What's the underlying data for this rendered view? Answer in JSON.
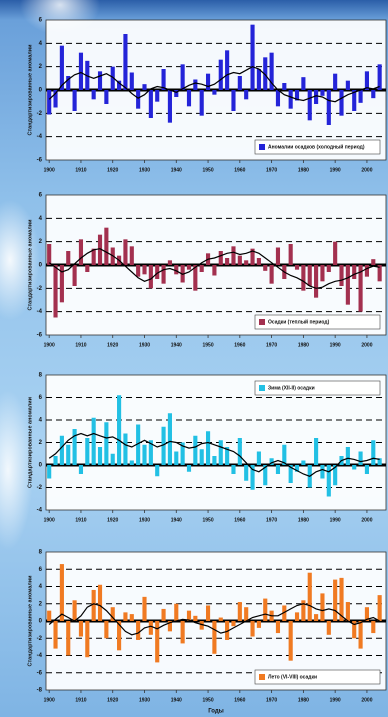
{
  "chart_data": [
    {
      "type": "bar",
      "ylabel": "Стандартизированные аномалии",
      "legend": "lower right",
      "x": [
        1900,
        1902,
        1904,
        1906,
        1908,
        1910,
        1912,
        1914,
        1916,
        1918,
        1920,
        1922,
        1924,
        1926,
        1928,
        1930,
        1932,
        1934,
        1936,
        1938,
        1940,
        1942,
        1944,
        1946,
        1948,
        1950,
        1952,
        1954,
        1956,
        1958,
        1960,
        1962,
        1964,
        1966,
        1968,
        1970,
        1972,
        1974,
        1976,
        1978,
        1980,
        1982,
        1984,
        1986,
        1988,
        1990,
        1992,
        1994,
        1996,
        1998,
        2000,
        2002,
        2004
      ],
      "xlim": [
        1899,
        2006
      ],
      "xticks": [
        1900,
        1910,
        1920,
        1930,
        1940,
        1950,
        1960,
        1970,
        1980,
        1990,
        2000
      ],
      "ylim": [
        -6,
        6
      ],
      "yticks": [
        -6,
        -4,
        -2,
        0,
        2,
        4,
        6
      ],
      "grid": true,
      "series": [
        {
          "name": "Аномалии осадков (холодный период)",
          "color": "#2424d8",
          "values": [
            -2.1,
            -1.5,
            3.8,
            1.2,
            -1.8,
            3.2,
            2.5,
            -0.8,
            1.6,
            -1.2,
            2.0,
            0.8,
            4.8,
            1.5,
            -1.6,
            0.5,
            -2.4,
            -1.0,
            1.8,
            -2.8,
            -0.6,
            2.2,
            -1.4,
            0.9,
            -2.2,
            1.4,
            -0.4,
            2.6,
            3.4,
            -1.8,
            1.2,
            -0.8,
            5.6,
            1.8,
            2.8,
            3.2,
            -1.4,
            0.6,
            -1.6,
            -0.9,
            1.1,
            -2.6,
            -1.2,
            -0.5,
            -3.0,
            1.4,
            -2.2,
            0.8,
            -1.8,
            -1.1,
            1.6,
            -0.7,
            2.2
          ]
        },
        {
          "type": "line",
          "color": "#000000",
          "values": [
            -0.8,
            -0.3,
            0.4,
            0.9,
            1.3,
            1.5,
            1.2,
            1.0,
            1.2,
            1.4,
            1.1,
            0.6,
            0.2,
            -0.3,
            -0.7,
            -0.4,
            0.1,
            0.3,
            0.2,
            0.0,
            -0.2,
            0.1,
            0.4,
            0.6,
            0.5,
            0.3,
            0.5,
            0.9,
            1.3,
            1.5,
            1.4,
            1.7,
            2.0,
            1.8,
            1.3,
            0.6,
            0.0,
            -0.4,
            -0.6,
            -0.8,
            -0.9,
            -0.7,
            -0.5,
            -0.6,
            -0.9,
            -1.0,
            -0.7,
            -0.4,
            -0.2,
            0.0,
            0.2,
            0.1,
            0.3
          ]
        }
      ]
    },
    {
      "type": "bar",
      "ylabel": "Стандартизированные аномалии",
      "legend": "lower right",
      "x": [
        1900,
        1902,
        1904,
        1906,
        1908,
        1910,
        1912,
        1914,
        1916,
        1918,
        1920,
        1922,
        1924,
        1926,
        1928,
        1930,
        1932,
        1934,
        1936,
        1938,
        1940,
        1942,
        1944,
        1946,
        1948,
        1950,
        1952,
        1954,
        1956,
        1958,
        1960,
        1962,
        1964,
        1966,
        1968,
        1970,
        1972,
        1974,
        1976,
        1978,
        1980,
        1982,
        1984,
        1986,
        1988,
        1990,
        1992,
        1994,
        1996,
        1998,
        2000,
        2002,
        2004
      ],
      "xlim": [
        1899,
        2006
      ],
      "xticks": [
        1900,
        1910,
        1920,
        1930,
        1940,
        1950,
        1960,
        1970,
        1980,
        1990,
        2000
      ],
      "ylim": [
        -6,
        6
      ],
      "yticks": [
        -6,
        -4,
        -2,
        0,
        2,
        4,
        6
      ],
      "grid": true,
      "series": [
        {
          "name": "Осадки (теплый период)",
          "color": "#a3304f",
          "values": [
            1.8,
            -4.5,
            -3.2,
            1.2,
            -1.8,
            2.2,
            -0.6,
            1.4,
            2.6,
            3.2,
            1.5,
            0.8,
            2.2,
            1.6,
            -1.0,
            -0.8,
            -2.0,
            -1.2,
            -1.6,
            0.4,
            -0.8,
            -1.5,
            -0.4,
            -2.2,
            -0.6,
            1.0,
            -0.9,
            1.2,
            0.6,
            1.6,
            0.8,
            0.4,
            1.4,
            0.6,
            -0.5,
            -1.6,
            1.5,
            -1.2,
            1.8,
            -0.4,
            -2.2,
            -1.8,
            -2.8,
            -1.4,
            -0.6,
            2.0,
            -1.8,
            -3.4,
            -1.2,
            -4.0,
            -1.0,
            0.5,
            -1.4
          ]
        },
        {
          "type": "line",
          "color": "#000000",
          "values": [
            0.2,
            -0.2,
            -0.6,
            -0.4,
            0.1,
            0.6,
            1.0,
            1.3,
            1.4,
            1.1,
            0.8,
            0.4,
            -0.1,
            -0.6,
            -1.1,
            -1.4,
            -1.2,
            -0.7,
            -0.4,
            -0.3,
            -0.5,
            -0.8,
            -0.6,
            -0.2,
            0.2,
            0.5,
            0.6,
            0.8,
            1.0,
            1.1,
            0.9,
            1.0,
            1.2,
            1.0,
            0.6,
            0.2,
            -0.2,
            -0.6,
            -0.9,
            -1.1,
            -1.4,
            -1.8,
            -2.0,
            -1.9,
            -1.6,
            -1.4,
            -1.3,
            -1.1,
            -0.8,
            -0.6,
            -0.3,
            -0.1,
            -0.2
          ]
        }
      ]
    },
    {
      "type": "bar",
      "ylabel": "Стандартизированные аномалии",
      "legend": "upper right",
      "x": [
        1900,
        1902,
        1904,
        1906,
        1908,
        1910,
        1912,
        1914,
        1916,
        1918,
        1920,
        1922,
        1924,
        1926,
        1928,
        1930,
        1932,
        1934,
        1936,
        1938,
        1940,
        1942,
        1944,
        1946,
        1948,
        1950,
        1952,
        1954,
        1956,
        1958,
        1960,
        1962,
        1964,
        1966,
        1968,
        1970,
        1972,
        1974,
        1976,
        1978,
        1980,
        1982,
        1984,
        1986,
        1988,
        1990,
        1992,
        1994,
        1996,
        1998,
        2000,
        2002,
        2004
      ],
      "xlim": [
        1899,
        2006
      ],
      "xticks": [
        1900,
        1910,
        1920,
        1930,
        1940,
        1950,
        1960,
        1970,
        1980,
        1990,
        2000
      ],
      "ylim": [
        -4,
        8
      ],
      "yticks": [
        -4,
        -2,
        0,
        2,
        4,
        6,
        8
      ],
      "grid": true,
      "series": [
        {
          "name": "Зима (XII-II) осадки",
          "color": "#22c0e4",
          "values": [
            -1.2,
            0.8,
            2.6,
            1.8,
            3.2,
            -0.8,
            2.4,
            4.2,
            1.6,
            3.8,
            1.0,
            6.2,
            2.8,
            0.4,
            3.6,
            1.8,
            2.2,
            -1.0,
            3.4,
            4.6,
            1.2,
            2.0,
            -0.6,
            2.6,
            1.4,
            3.0,
            0.8,
            2.2,
            1.6,
            -0.8,
            2.4,
            -1.4,
            -2.2,
            1.2,
            -1.8,
            0.6,
            -0.8,
            1.8,
            -1.6,
            -0.6,
            0.4,
            -2.0,
            2.4,
            -1.2,
            -2.8,
            -1.8,
            0.8,
            1.6,
            -0.4,
            1.2,
            -0.8,
            2.2,
            0.6
          ]
        },
        {
          "type": "line",
          "color": "#000000",
          "values": [
            0.6,
            1.0,
            1.6,
            2.2,
            2.6,
            2.8,
            2.6,
            2.8,
            2.6,
            2.4,
            2.5,
            2.2,
            1.8,
            1.6,
            1.9,
            2.2,
            1.9,
            1.6,
            1.8,
            2.1,
            2.0,
            1.7,
            1.5,
            1.6,
            1.9,
            2.0,
            1.8,
            1.6,
            1.4,
            1.2,
            0.8,
            0.2,
            -0.4,
            -0.6,
            -0.2,
            0.2,
            0.4,
            0.2,
            -0.2,
            -0.5,
            -0.8,
            -1.0,
            -0.6,
            -0.4,
            -0.6,
            -0.2,
            0.4,
            0.6,
            0.5,
            0.3,
            0.4,
            0.6,
            0.5
          ]
        }
      ]
    },
    {
      "type": "bar",
      "ylabel": "Стандартизированные аномалии",
      "legend": "lower right",
      "xlabel": "Годы",
      "x": [
        1900,
        1902,
        1904,
        1906,
        1908,
        1910,
        1912,
        1914,
        1916,
        1918,
        1920,
        1922,
        1924,
        1926,
        1928,
        1930,
        1932,
        1934,
        1936,
        1938,
        1940,
        1942,
        1944,
        1946,
        1948,
        1950,
        1952,
        1954,
        1956,
        1958,
        1960,
        1962,
        1964,
        1966,
        1968,
        1970,
        1972,
        1974,
        1976,
        1978,
        1980,
        1982,
        1984,
        1986,
        1988,
        1990,
        1992,
        1994,
        1996,
        1998,
        2000,
        2002,
        2004
      ],
      "xlim": [
        1899,
        2006
      ],
      "xticks": [
        1900,
        1910,
        1920,
        1930,
        1940,
        1950,
        1960,
        1970,
        1980,
        1990,
        2000
      ],
      "ylim": [
        -8,
        8
      ],
      "yticks": [
        -8,
        -6,
        -4,
        -2,
        0,
        2,
        4,
        6,
        8
      ],
      "grid": true,
      "series": [
        {
          "name": "Лето (VI-VIII) осадки",
          "color": "#f07a22",
          "values": [
            1.2,
            -3.2,
            6.6,
            -4.0,
            2.4,
            -1.8,
            -4.2,
            3.6,
            4.2,
            -2.0,
            1.6,
            -3.4,
            1.0,
            0.8,
            -2.2,
            2.8,
            -1.6,
            -4.8,
            1.4,
            -1.2,
            2.0,
            -2.6,
            1.2,
            0.6,
            -1.0,
            1.8,
            -3.8,
            0.4,
            -2.2,
            -0.6,
            2.2,
            1.6,
            -1.8,
            -0.8,
            2.6,
            1.2,
            -1.4,
            1.8,
            -4.6,
            1.0,
            2.4,
            5.6,
            0.8,
            3.2,
            -1.6,
            4.8,
            5.0,
            2.2,
            -2.0,
            -3.2,
            1.6,
            -1.4,
            3.0
          ]
        },
        {
          "type": "line",
          "color": "#000000",
          "values": [
            -0.4,
            0.2,
            0.8,
            0.4,
            0.0,
            0.6,
            1.6,
            2.0,
            1.8,
            1.2,
            0.4,
            -0.4,
            -1.2,
            -1.6,
            -1.4,
            -0.8,
            -0.6,
            -0.9,
            -0.5,
            -0.2,
            0.0,
            0.2,
            0.1,
            -0.2,
            -0.4,
            -0.6,
            -1.0,
            -1.4,
            -1.2,
            -0.8,
            -0.4,
            0.0,
            0.4,
            0.6,
            0.8,
            0.6,
            0.6,
            1.0,
            1.4,
            1.8,
            2.0,
            1.8,
            1.4,
            1.2,
            1.4,
            1.2,
            0.6,
            0.0,
            -0.4,
            -0.2,
            0.2,
            0.4,
            0.0
          ]
        }
      ]
    }
  ]
}
